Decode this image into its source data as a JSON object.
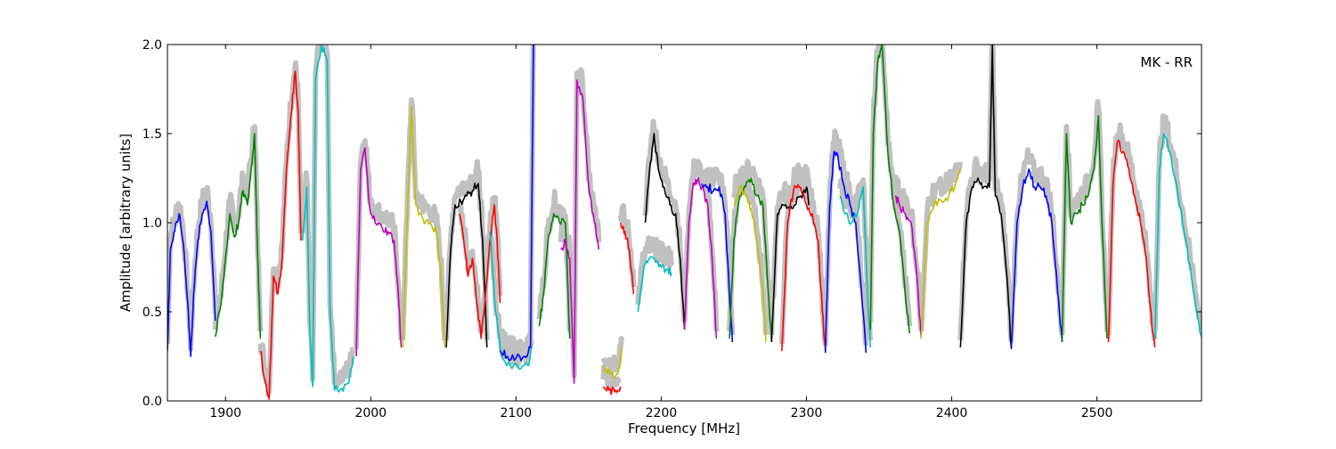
{
  "chart_data": {
    "type": "line",
    "title": "",
    "annotation": "MK - RR",
    "xlabel": "Frequency [MHz]",
    "ylabel": "Amplitude [arbitrary units]",
    "xlim": [
      1860,
      2572
    ],
    "ylim": [
      0.0,
      2.0
    ],
    "xticks": [
      1900,
      2000,
      2100,
      2200,
      2300,
      2400,
      2500
    ],
    "xtick_labels": [
      "1900",
      "2000",
      "2100",
      "2200",
      "2300",
      "2400",
      "2500"
    ],
    "yticks": [
      0.0,
      0.5,
      1.0,
      1.5,
      2.0
    ],
    "ytick_labels": [
      "0.0",
      "0.5",
      "1.0",
      "1.5",
      "2.0"
    ],
    "grid": false,
    "background_color": "#c0c0c0",
    "segment_color_cycle": [
      "#0000ff",
      "#008000",
      "#ff0000",
      "#00bfbf",
      "#bf00bf",
      "#bfbf00",
      "#000000"
    ],
    "series": [
      {
        "color": "#0000ff",
        "points": [
          [
            1860,
            0.28
          ],
          [
            1862,
            0.85
          ],
          [
            1865,
            0.95
          ],
          [
            1868,
            1.05
          ],
          [
            1871,
            0.88
          ],
          [
            1874,
            0.55
          ],
          [
            1876,
            0.25
          ],
          [
            1878,
            0.6
          ],
          [
            1881,
            0.9
          ],
          [
            1884,
            1.05
          ],
          [
            1887,
            1.12
          ],
          [
            1890,
            0.95
          ],
          [
            1893,
            0.45
          ]
        ]
      },
      {
        "color": "#008000",
        "points": [
          [
            1893,
            0.36
          ],
          [
            1897,
            0.55
          ],
          [
            1900,
            0.8
          ],
          [
            1903,
            1.05
          ],
          [
            1906,
            0.92
          ],
          [
            1909,
            1.0
          ],
          [
            1912,
            1.18
          ],
          [
            1915,
            1.1
          ],
          [
            1918,
            1.32
          ],
          [
            1920,
            1.5
          ],
          [
            1922,
            0.85
          ],
          [
            1924,
            0.35
          ]
        ]
      },
      {
        "color": "#ff0000",
        "points": [
          [
            1924,
            0.28
          ],
          [
            1927,
            0.12
          ],
          [
            1930,
            0.01
          ],
          [
            1933,
            0.7
          ],
          [
            1936,
            0.6
          ],
          [
            1939,
            0.8
          ],
          [
            1942,
            1.3
          ],
          [
            1945,
            1.6
          ],
          [
            1948,
            1.85
          ],
          [
            1950,
            1.62
          ],
          [
            1952,
            0.9
          ]
        ]
      },
      {
        "color": "#00bfbf",
        "points": [
          [
            1953,
            0.9
          ],
          [
            1956,
            1.2
          ],
          [
            1958,
            0.4
          ],
          [
            1960,
            0.08
          ],
          [
            1962,
            1.8
          ],
          [
            1966,
            2.0
          ],
          [
            1970,
            1.9
          ],
          [
            1972,
            0.5
          ],
          [
            1975,
            0.06
          ],
          [
            1980,
            0.07
          ],
          [
            1985,
            0.1
          ],
          [
            1988,
            0.25
          ]
        ]
      },
      {
        "color": "#bf00bf",
        "points": [
          [
            1990,
            0.25
          ],
          [
            1993,
            1.3
          ],
          [
            1996,
            1.42
          ],
          [
            1999,
            1.1
          ],
          [
            2003,
            1.0
          ],
          [
            2008,
            0.97
          ],
          [
            2012,
            0.95
          ],
          [
            2016,
            0.9
          ],
          [
            2019,
            0.6
          ],
          [
            2021,
            0.3
          ]
        ]
      },
      {
        "color": "#bfbf00",
        "points": [
          [
            2022,
            0.3
          ],
          [
            2025,
            1.0
          ],
          [
            2028,
            1.65
          ],
          [
            2031,
            1.1
          ],
          [
            2036,
            1.02
          ],
          [
            2041,
            1.0
          ],
          [
            2045,
            0.95
          ],
          [
            2048,
            0.75
          ],
          [
            2051,
            0.3
          ]
        ]
      },
      {
        "color": "#000000",
        "points": [
          [
            2052,
            0.3
          ],
          [
            2055,
            0.85
          ],
          [
            2058,
            1.1
          ],
          [
            2062,
            1.12
          ],
          [
            2066,
            1.15
          ],
          [
            2070,
            1.18
          ],
          [
            2074,
            1.22
          ],
          [
            2077,
            0.9
          ],
          [
            2080,
            0.3
          ]
        ]
      },
      {
        "color": "#ff0000",
        "points": [
          [
            2061,
            1.05
          ],
          [
            2064,
            0.9
          ],
          [
            2067,
            0.7
          ],
          [
            2070,
            0.8
          ],
          [
            2073,
            0.55
          ],
          [
            2076,
            0.35
          ],
          [
            2079,
            0.6
          ],
          [
            2082,
            0.9
          ],
          [
            2085,
            1.1
          ],
          [
            2087,
            0.9
          ],
          [
            2089,
            0.55
          ]
        ]
      },
      {
        "color": "#00bfbf",
        "points": [
          [
            2082,
            0.95
          ],
          [
            2086,
            0.5
          ],
          [
            2090,
            0.25
          ],
          [
            2096,
            0.2
          ],
          [
            2102,
            0.18
          ],
          [
            2108,
            0.2
          ],
          [
            2111,
            0.3
          ]
        ]
      },
      {
        "color": "#0000ff",
        "points": [
          [
            2089,
            0.28
          ],
          [
            2094,
            0.25
          ],
          [
            2100,
            0.24
          ],
          [
            2106,
            0.25
          ],
          [
            2110,
            0.3
          ],
          [
            2112,
            2.0
          ]
        ]
      },
      {
        "color": "#008000",
        "points": [
          [
            2116,
            0.42
          ],
          [
            2119,
            0.6
          ],
          [
            2122,
            0.9
          ],
          [
            2126,
            1.05
          ],
          [
            2130,
            1.0
          ],
          [
            2134,
            1.0
          ],
          [
            2137,
            0.35
          ]
        ]
      },
      {
        "color": "#bf00bf",
        "points": [
          [
            2131,
            0.85
          ],
          [
            2134,
            0.9
          ],
          [
            2137,
            0.8
          ],
          [
            2140,
            0.1
          ],
          [
            2142,
            1.8
          ],
          [
            2146,
            1.7
          ],
          [
            2150,
            1.2
          ],
          [
            2154,
            1.0
          ],
          [
            2157,
            0.85
          ]
        ]
      },
      {
        "color": "#ff0000",
        "points": [
          [
            2160,
            0.08
          ],
          [
            2164,
            0.06
          ],
          [
            2168,
            0.05
          ],
          [
            2172,
            0.08
          ]
        ]
      },
      {
        "color": "#bfbf00",
        "points": [
          [
            2160,
            0.2
          ],
          [
            2165,
            0.15
          ],
          [
            2170,
            0.15
          ],
          [
            2173,
            0.3
          ]
        ]
      },
      {
        "color": "#ff0000",
        "points": [
          [
            2172,
            1.0
          ],
          [
            2175,
            0.95
          ],
          [
            2178,
            0.85
          ],
          [
            2181,
            0.6
          ]
        ]
      },
      {
        "color": "#00bfbf",
        "points": [
          [
            2184,
            0.5
          ],
          [
            2188,
            0.75
          ],
          [
            2192,
            0.8
          ],
          [
            2196,
            0.78
          ],
          [
            2200,
            0.75
          ],
          [
            2204,
            0.74
          ],
          [
            2207,
            0.72
          ]
        ]
      },
      {
        "color": "#000000",
        "points": [
          [
            2189,
            1.0
          ],
          [
            2192,
            1.3
          ],
          [
            2195,
            1.5
          ],
          [
            2198,
            1.3
          ],
          [
            2202,
            1.2
          ],
          [
            2206,
            1.1
          ],
          [
            2210,
            1.05
          ],
          [
            2213,
            0.8
          ],
          [
            2216,
            0.4
          ]
        ]
      },
      {
        "color": "#bf00bf",
        "points": [
          [
            2216,
            0.4
          ],
          [
            2219,
            1.0
          ],
          [
            2222,
            1.22
          ],
          [
            2225,
            1.24
          ],
          [
            2228,
            1.2
          ],
          [
            2232,
            1.1
          ],
          [
            2235,
            0.8
          ],
          [
            2238,
            0.35
          ]
        ]
      },
      {
        "color": "#0000ff",
        "points": [
          [
            2228,
            1.22
          ],
          [
            2232,
            1.2
          ],
          [
            2236,
            1.18
          ],
          [
            2240,
            1.2
          ],
          [
            2244,
            1.05
          ],
          [
            2247,
            0.6
          ],
          [
            2249,
            0.33
          ]
        ]
      },
      {
        "color": "#008000",
        "points": [
          [
            2247,
            0.35
          ],
          [
            2250,
            0.9
          ],
          [
            2254,
            1.15
          ],
          [
            2258,
            1.2
          ],
          [
            2262,
            1.25
          ],
          [
            2266,
            1.15
          ],
          [
            2270,
            1.1
          ],
          [
            2273,
            0.7
          ],
          [
            2276,
            0.33
          ]
        ]
      },
      {
        "color": "#bfbf00",
        "points": [
          [
            2250,
            1.1
          ],
          [
            2254,
            1.2
          ],
          [
            2258,
            1.15
          ],
          [
            2262,
            1.08
          ],
          [
            2266,
            0.9
          ],
          [
            2270,
            0.6
          ],
          [
            2272,
            0.33
          ]
        ]
      },
      {
        "color": "#000000",
        "points": [
          [
            2276,
            0.33
          ],
          [
            2280,
            1.05
          ],
          [
            2284,
            1.1
          ],
          [
            2288,
            1.08
          ],
          [
            2292,
            1.1
          ],
          [
            2296,
            1.15
          ],
          [
            2300,
            1.2
          ],
          [
            2302,
            1.1
          ]
        ]
      },
      {
        "color": "#ff0000",
        "points": [
          [
            2283,
            0.28
          ],
          [
            2287,
            1.0
          ],
          [
            2291,
            1.18
          ],
          [
            2295,
            1.2
          ],
          [
            2300,
            1.1
          ],
          [
            2304,
            1.05
          ],
          [
            2308,
            0.9
          ],
          [
            2311,
            0.5
          ],
          [
            2313,
            0.28
          ]
        ]
      },
      {
        "color": "#0000ff",
        "points": [
          [
            2313,
            0.27
          ],
          [
            2316,
            1.1
          ],
          [
            2319,
            1.4
          ],
          [
            2322,
            1.35
          ],
          [
            2326,
            1.2
          ],
          [
            2330,
            1.1
          ],
          [
            2334,
            1.0
          ],
          [
            2338,
            0.6
          ],
          [
            2341,
            0.27
          ]
        ]
      },
      {
        "color": "#00bfbf",
        "points": [
          [
            2323,
            1.15
          ],
          [
            2327,
            1.05
          ],
          [
            2331,
            1.0
          ],
          [
            2335,
            1.05
          ],
          [
            2339,
            1.2
          ],
          [
            2342,
            0.6
          ],
          [
            2344,
            0.3
          ]
        ]
      },
      {
        "color": "#008000",
        "points": [
          [
            2344,
            0.4
          ],
          [
            2346,
            1.5
          ],
          [
            2349,
            1.9
          ],
          [
            2352,
            2.0
          ],
          [
            2356,
            1.4
          ],
          [
            2360,
            1.1
          ],
          [
            2364,
            0.95
          ],
          [
            2368,
            0.6
          ],
          [
            2371,
            0.38
          ]
        ]
      },
      {
        "color": "#bf00bf",
        "points": [
          [
            2361,
            1.15
          ],
          [
            2364,
            1.1
          ],
          [
            2368,
            1.05
          ],
          [
            2372,
            1.0
          ],
          [
            2376,
            0.7
          ],
          [
            2379,
            0.35
          ]
        ]
      },
      {
        "color": "#bfbf00",
        "points": [
          [
            2379,
            0.35
          ],
          [
            2383,
            1.0
          ],
          [
            2388,
            1.1
          ],
          [
            2393,
            1.12
          ],
          [
            2398,
            1.15
          ],
          [
            2402,
            1.2
          ],
          [
            2406,
            1.3
          ]
        ]
      },
      {
        "color": "#000000",
        "points": [
          [
            2406,
            0.3
          ],
          [
            2410,
            1.0
          ],
          [
            2414,
            1.2
          ],
          [
            2418,
            1.25
          ],
          [
            2422,
            1.2
          ],
          [
            2426,
            1.2
          ],
          [
            2428,
            2.0
          ],
          [
            2430,
            1.15
          ],
          [
            2434,
            1.05
          ],
          [
            2438,
            0.7
          ],
          [
            2441,
            0.3
          ]
        ]
      },
      {
        "color": "#0000ff",
        "points": [
          [
            2441,
            0.29
          ],
          [
            2445,
            1.0
          ],
          [
            2449,
            1.2
          ],
          [
            2453,
            1.3
          ],
          [
            2457,
            1.2
          ],
          [
            2461,
            1.2
          ],
          [
            2465,
            1.15
          ],
          [
            2469,
            1.0
          ],
          [
            2473,
            0.6
          ],
          [
            2476,
            0.33
          ]
        ]
      },
      {
        "color": "#008000",
        "points": [
          [
            2476,
            0.33
          ],
          [
            2479,
            1.5
          ],
          [
            2482,
            1.0
          ],
          [
            2486,
            1.05
          ],
          [
            2490,
            1.1
          ],
          [
            2494,
            1.15
          ],
          [
            2498,
            1.3
          ],
          [
            2501,
            1.6
          ],
          [
            2504,
            0.9
          ],
          [
            2507,
            0.35
          ]
        ]
      },
      {
        "color": "#ff0000",
        "points": [
          [
            2508,
            0.33
          ],
          [
            2511,
            1.2
          ],
          [
            2514,
            1.45
          ],
          [
            2518,
            1.4
          ],
          [
            2522,
            1.3
          ],
          [
            2526,
            1.15
          ],
          [
            2530,
            1.0
          ],
          [
            2534,
            0.8
          ],
          [
            2538,
            0.4
          ],
          [
            2540,
            0.3
          ]
        ]
      },
      {
        "color": "#00bfbf",
        "points": [
          [
            2540,
            0.35
          ],
          [
            2543,
            1.3
          ],
          [
            2546,
            1.5
          ],
          [
            2550,
            1.4
          ],
          [
            2555,
            1.2
          ],
          [
            2560,
            0.95
          ],
          [
            2565,
            0.7
          ],
          [
            2570,
            0.45
          ],
          [
            2572,
            0.36
          ]
        ]
      }
    ]
  }
}
